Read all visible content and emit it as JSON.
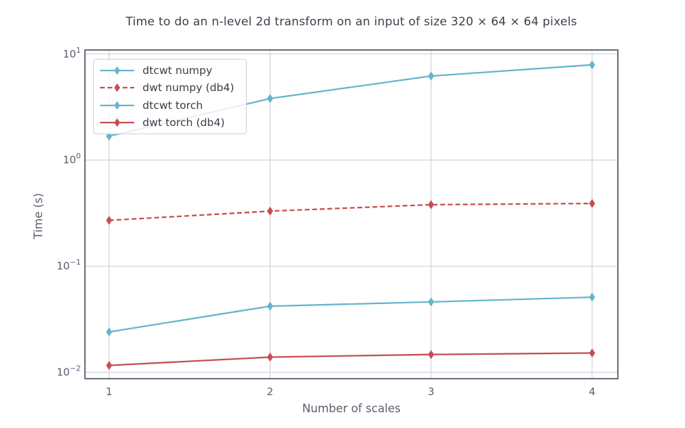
{
  "chart_data": {
    "type": "line",
    "title": "Time to do an n-level 2d transform on an input of size 320 × 64 × 64 pixels",
    "xlabel": "Number of scales",
    "ylabel": "Time (s)",
    "yscale": "log",
    "grid": true,
    "legend_position": "upper left",
    "xlim": [
      0.85,
      4.16
    ],
    "ylim": [
      0.0087,
      10.9
    ],
    "x": [
      1,
      2,
      3,
      4
    ],
    "x_ticks": [
      {
        "v": 1,
        "label": "1"
      },
      {
        "v": 2,
        "label": "2"
      },
      {
        "v": 3,
        "label": "3"
      },
      {
        "v": 4,
        "label": "4"
      }
    ],
    "y_ticks": [
      {
        "v": 10,
        "label": "10^1"
      },
      {
        "v": 1,
        "label": "10^0"
      },
      {
        "v": 0.1,
        "label": "10^−1"
      },
      {
        "v": 0.01,
        "label": "10^−2"
      }
    ],
    "series": [
      {
        "name": "dtcwt numpy",
        "color": "#64B5CD",
        "dash": "none",
        "marker": "thin-diamond",
        "values": [
          1.68,
          3.8,
          6.2,
          7.9
        ]
      },
      {
        "name": "dwt numpy (db4)",
        "color": "#C44E52",
        "dash": "7,4",
        "marker": "thin-diamond",
        "values": [
          0.27,
          0.33,
          0.38,
          0.39
        ]
      },
      {
        "name": "dtcwt torch",
        "color": "#64B5CD",
        "dash": "none",
        "marker": "thin-diamond",
        "values": [
          0.024,
          0.042,
          0.046,
          0.051
        ]
      },
      {
        "name": "dwt torch (db4)",
        "color": "#C44E52",
        "dash": "none",
        "marker": "thin-diamond",
        "values": [
          0.0116,
          0.0139,
          0.0147,
          0.0152
        ]
      }
    ],
    "colors": {
      "plot_bg": "#ffffff",
      "grid": "#d9d9de",
      "axes_border": "#525c66",
      "title_text": "#3e3e4d",
      "tick_text": "#5b5b6d",
      "label_text": "#5d5d6e",
      "legend_text": "#3b3b46",
      "legend_border": "#cfcfd4"
    }
  }
}
